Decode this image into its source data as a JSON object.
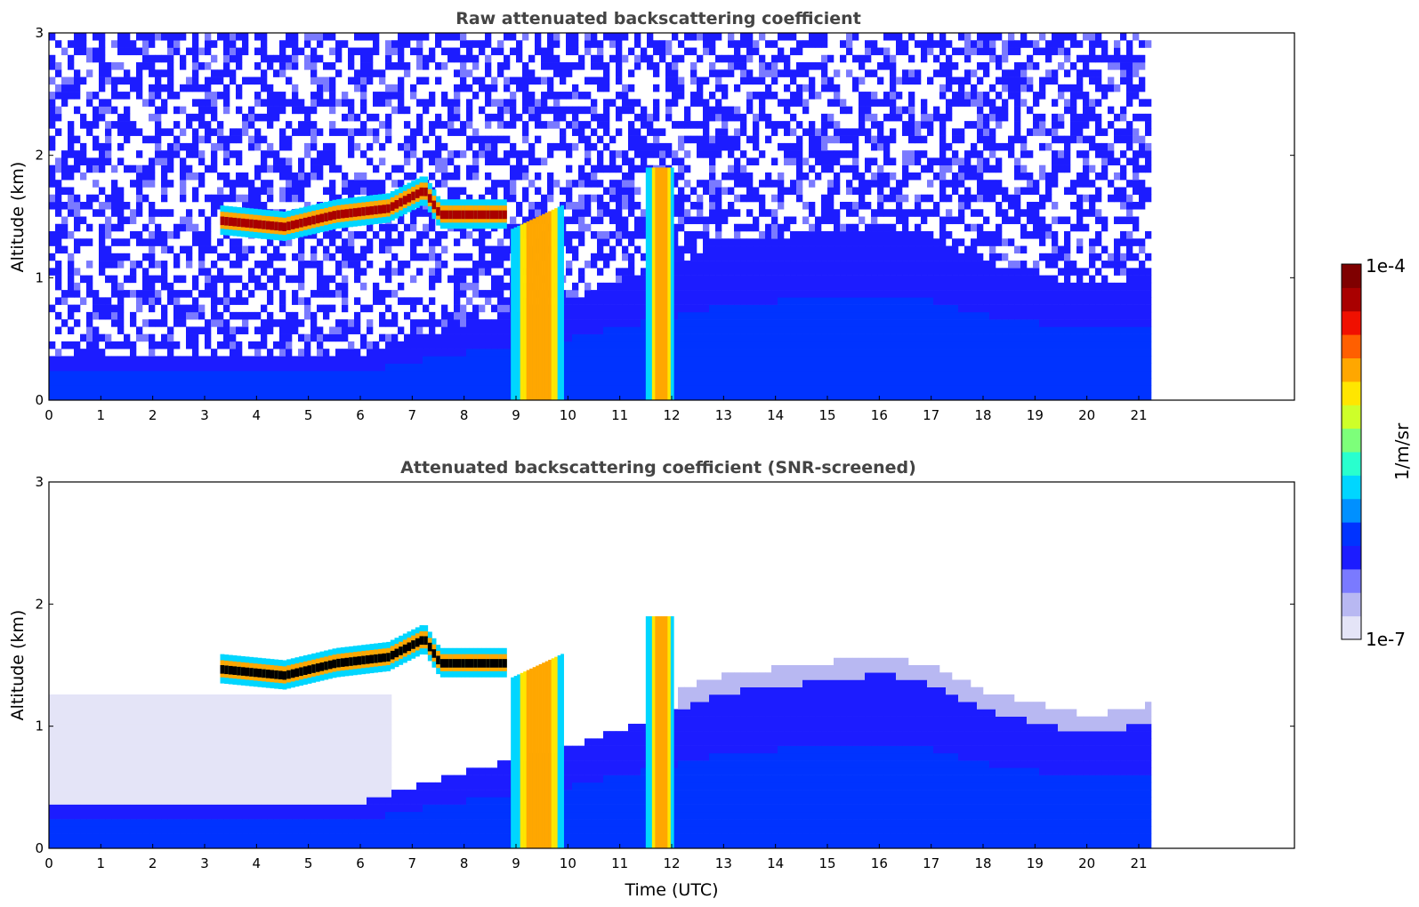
{
  "chart_data": [
    {
      "type": "heatmap",
      "title": "Raw attenuated backscattering coefficient",
      "xlabel": "",
      "ylabel": "Altitude (km)",
      "xlim": [
        0,
        24
      ],
      "ylim": [
        0,
        3
      ],
      "x_ticks": [
        "0",
        "1",
        "2",
        "3",
        "4",
        "5",
        "6",
        "7",
        "8",
        "9",
        "10",
        "11",
        "12",
        "13",
        "14",
        "15",
        "16",
        "17",
        "18",
        "19",
        "20",
        "21"
      ],
      "y_ticks": [
        "0",
        "1",
        "2",
        "3"
      ],
      "data_end_time": 21.15,
      "features": {
        "boundary_layer_top_km": [
          [
            0,
            0.35
          ],
          [
            3,
            0.3
          ],
          [
            6,
            0.35
          ],
          [
            8,
            0.6
          ],
          [
            10,
            0.8
          ],
          [
            13,
            1.25
          ],
          [
            16,
            1.4
          ],
          [
            17,
            1.3
          ],
          [
            18,
            1.1
          ],
          [
            20,
            0.9
          ],
          [
            21.15,
            1.0
          ]
        ],
        "cloud_layer_km": [
          [
            3.3,
            1.45
          ],
          [
            4.5,
            1.4
          ],
          [
            5.5,
            1.5
          ],
          [
            6.5,
            1.55
          ],
          [
            7.2,
            1.7
          ],
          [
            7.5,
            1.5
          ],
          [
            8.8,
            1.5
          ]
        ],
        "convective_columns_h": [
          [
            8.9,
            9.9
          ],
          [
            11.5,
            12.0
          ]
        ]
      }
    },
    {
      "type": "heatmap",
      "title": "Attenuated backscattering coefficient (SNR-screened)",
      "xlabel": "Time (UTC)",
      "ylabel": "Altitude (km)",
      "xlim": [
        0,
        24
      ],
      "ylim": [
        0,
        3
      ],
      "x_ticks": [
        "0",
        "1",
        "2",
        "3",
        "4",
        "5",
        "6",
        "7",
        "8",
        "9",
        "10",
        "11",
        "12",
        "13",
        "14",
        "15",
        "16",
        "17",
        "18",
        "19",
        "20",
        "21"
      ],
      "y_ticks": [
        "0",
        "1",
        "2",
        "3"
      ],
      "data_end_time": 21.15
    }
  ],
  "colorbar": {
    "label": "1/m/sr",
    "max_label": "1e-4",
    "min_label": "1e-7",
    "vmin": 1e-07,
    "vmax": 0.0001,
    "colors": [
      "#e4e4f7",
      "#b8b8f2",
      "#7a7aff",
      "#1c1cff",
      "#0033ff",
      "#0090ff",
      "#00d6ff",
      "#29ffce",
      "#7dff7a",
      "#ceff29",
      "#ffe600",
      "#ffa700",
      "#ff5f00",
      "#f01000",
      "#a90000",
      "#7f0000"
    ]
  }
}
